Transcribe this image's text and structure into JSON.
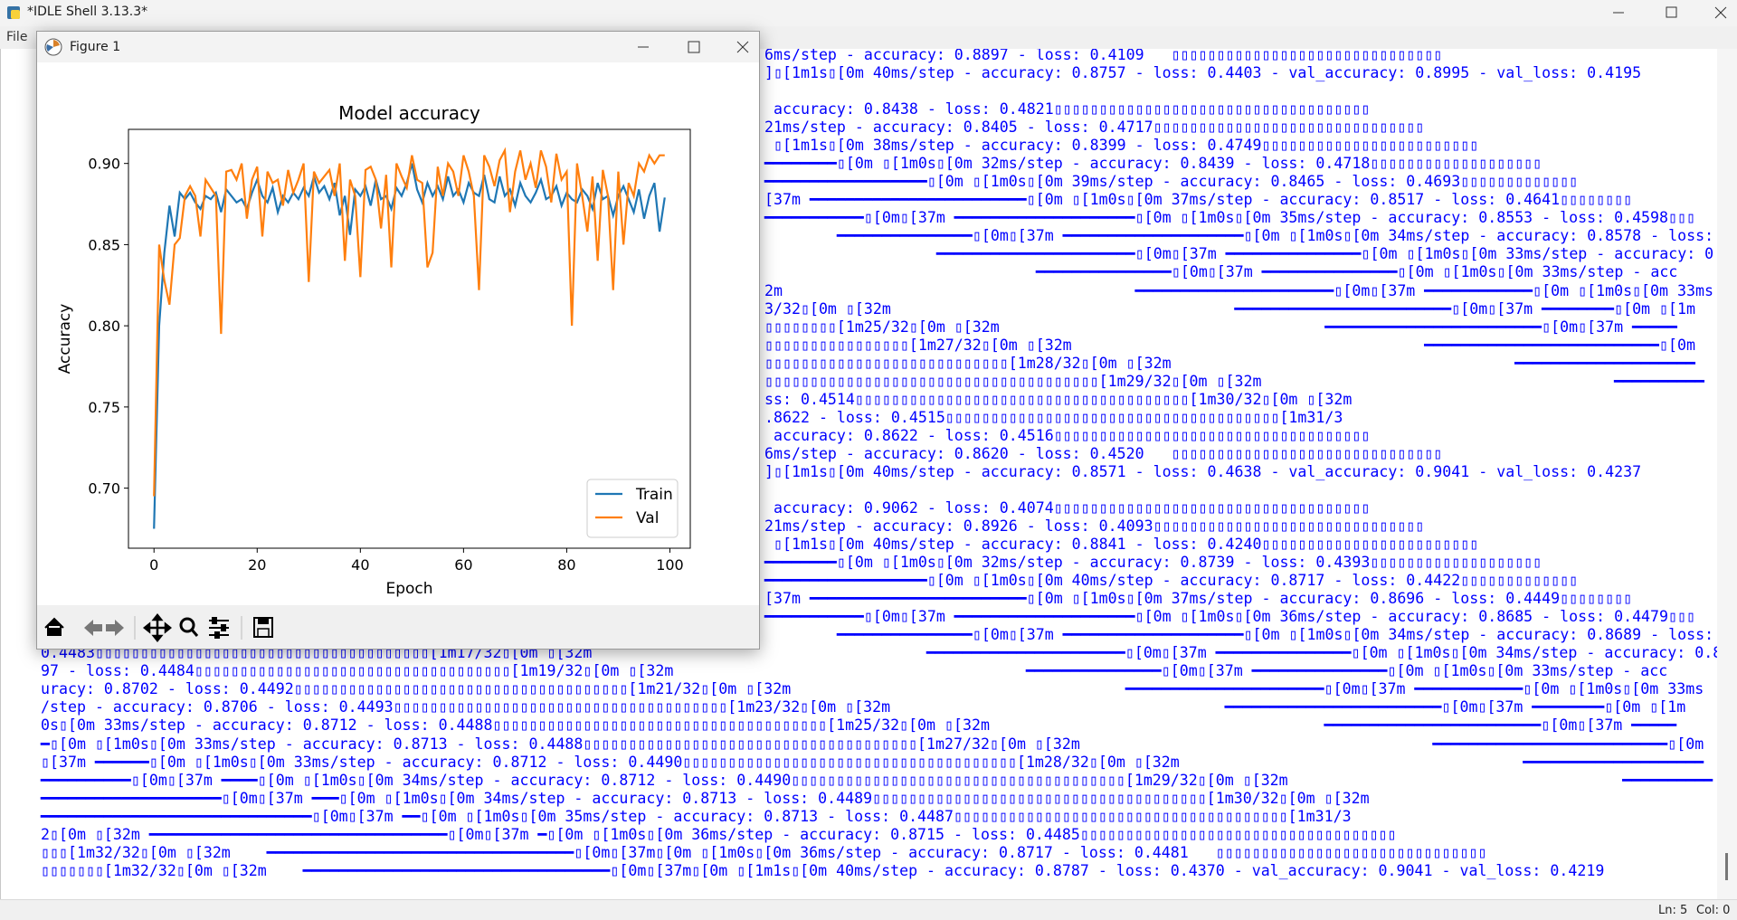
{
  "window": {
    "title": "*IDLE Shell 3.13.3*",
    "menu": [
      "File"
    ]
  },
  "status": {
    "line": "Ln: 5",
    "col": "Col: 0"
  },
  "figure": {
    "title": "Figure 1"
  },
  "shell": {
    "lines": [
      "6ms/step - accuracy: 0.8897 - loss: 0.4109   ▯▯▯▯▯▯▯▯▯▯▯▯▯▯▯▯▯▯▯▯▯▯▯▯▯▯▯▯▯▯",
      "]▯[1m1s▯[0m 40ms/step - accuracy: 0.8757 - loss: 0.4403 - val_accuracy: 0.8995 - val_loss: 0.4195",
      " accuracy: 0.8438 - loss: 0.4821▯▯▯▯▯▯▯▯▯▯▯▯▯▯▯▯▯▯▯▯▯▯▯▯▯▯▯▯▯▯▯▯▯▯▯",
      "21ms/step - accuracy: 0.8405 - loss: 0.4717▯▯▯▯▯▯▯▯▯▯▯▯▯▯▯▯▯▯▯▯▯▯▯▯▯▯▯▯▯▯",
      " ▯[1m1s▯[0m 38ms/step - accuracy: 0.8399 - loss: 0.4749▯▯▯▯▯▯▯▯▯▯▯▯▯▯▯▯▯▯▯▯▯▯▯▯",
      "━━━━━━━━▯[0m ▯[1m0s▯[0m 32ms/step - accuracy: 0.8439 - loss: 0.4718▯▯▯▯▯▯▯▯▯▯▯▯▯▯▯▯▯▯▯",
      "━━━━━━━━━━━━━━━━━━▯[0m ▯[1m0s▯[0m 39ms/step - accuracy: 0.8465 - loss: 0.4693▯▯▯▯▯▯▯▯▯▯▯▯▯",
      "[37m ━━━━━━━━━━━━━━━━━━━━━━━━▯[0m ▯[1m0s▯[0m 37ms/step - accuracy: 0.8517 - loss: 0.4641▯▯▯▯▯▯▯▯",
      "━━━━━━━━━━━▯[0m▯[37m ━━━━━━━━━━━━━━━━━━━━▯[0m ▯[1m0s▯[0m 35ms/step - accuracy: 0.8553 - loss: 0.4598▯▯▯",
      "━━━━━━━━━━━━━━━▯[0m▯[37m ━━━━━━━━━━━━━━━━━━━━▯[0m ▯[1m0s▯[0m 34ms/step - accuracy: 0.8578 - loss:",
      "━━━━━━━━━━━━━━━━━━━━━━▯[0m▯[37m ━━━━━━━━━━━━━━━▯[0m ▯[1m0s▯[0m 33ms/step - accuracy: 0.85",
      "━━━━━━━━━━━━━━━▯[0m▯[37m ━━━━━━━━━━━━━━━▯[0m ▯[1m0s▯[0m 33ms/step - acc",
      "2m                                       ━━━━━━━━━━━━━━━━━━━━━━▯[0m▯[37m ━━━━━━━━━━━━▯[0m ▯[1m0s▯[0m 33ms",
      "3/32▯[0m ▯[32m                                      ━━━━━━━━━━━━━━━━━━━━━━━━▯[0m▯[37m ━━━━━━━━▯[0m ▯[1m",
      "▯▯▯▯▯▯▯▯[1m25/32▯[0m ▯[32m                                    ━━━━━━━━━━━━━━━━━━━━━━━━▯[0m▯[37m ━━━━━",
      "▯▯▯▯▯▯▯▯▯▯▯▯▯▯▯▯[1m27/32▯[0m ▯[32m                                       ━━━━━━━━━━━━━━━━━━━━━━━━━━▯[0m",
      "▯▯▯▯▯▯▯▯▯▯▯▯▯▯▯▯▯▯▯▯▯▯▯▯▯▯▯[1m28/32▯[0m ▯[32m                                      ━━━━━━━━━━━━━━━━━━━━",
      "▯▯▯▯▯▯▯▯▯▯▯▯▯▯▯▯▯▯▯▯▯▯▯▯▯▯▯▯▯▯▯▯▯▯▯▯▯[1m29/32▯[0m ▯[32m                                       ━━━━━━━━━━",
      "ss: 0.4514▯▯▯▯▯▯▯▯▯▯▯▯▯▯▯▯▯▯▯▯▯▯▯▯▯▯▯▯▯▯▯▯▯▯▯▯▯[1m30/32▯[0m ▯[32m",
      ".8622 - loss: 0.4515▯▯▯▯▯▯▯▯▯▯▯▯▯▯▯▯▯▯▯▯▯▯▯▯▯▯▯▯▯▯▯▯▯▯▯▯▯[1m31/3",
      " accuracy: 0.8622 - loss: 0.4516▯▯▯▯▯▯▯▯▯▯▯▯▯▯▯▯▯▯▯▯▯▯▯▯▯▯▯▯▯▯▯▯▯▯▯",
      "6ms/step - accuracy: 0.8620 - loss: 0.4520   ▯▯▯▯▯▯▯▯▯▯▯▯▯▯▯▯▯▯▯▯▯▯▯▯▯▯▯▯▯▯",
      "]▯[1m1s▯[0m 40ms/step - accuracy: 0.8571 - loss: 0.4638 - val_accuracy: 0.9041 - val_loss: 0.4237",
      " accuracy: 0.9062 - loss: 0.4074▯▯▯▯▯▯▯▯▯▯▯▯▯▯▯▯▯▯▯▯▯▯▯▯▯▯▯▯▯▯▯▯▯▯▯",
      "21ms/step - accuracy: 0.8926 - loss: 0.4093▯▯▯▯▯▯▯▯▯▯▯▯▯▯▯▯▯▯▯▯▯▯▯▯▯▯▯▯▯▯",
      " ▯[1m1s▯[0m 40ms/step - accuracy: 0.8841 - loss: 0.4240▯▯▯▯▯▯▯▯▯▯▯▯▯▯▯▯▯▯▯▯▯▯▯▯",
      "━━━━━━━━▯[0m ▯[1m0s▯[0m 32ms/step - accuracy: 0.8739 - loss: 0.4393▯▯▯▯▯▯▯▯▯▯▯▯▯▯▯▯▯▯▯",
      "━━━━━━━━━━━━━━━━━━▯[0m ▯[1m0s▯[0m 40ms/step - accuracy: 0.8717 - loss: 0.4422▯▯▯▯▯▯▯▯▯▯▯▯▯",
      "[37m ━━━━━━━━━━━━━━━━━━━━━━━━▯[0m ▯[1m0s▯[0m 37ms/step - accuracy: 0.8696 - loss: 0.4449▯▯▯▯▯▯▯▯",
      "━━━━━━━━━━━▯[0m▯[37m ━━━━━━━━━━━━━━━━━━━━▯[0m ▯[1m0s▯[0m 36ms/step - accuracy: 0.8685 - loss: 0.4479▯▯▯",
      "━━━━━━━━━━━━━━━▯[0m▯[37m ━━━━━━━━━━━━━━━━━━━━▯[0m ▯[1m0s▯[0m 34ms/step - accuracy: 0.8689 - loss:",
      "0.4483▯▯▯▯▯▯▯▯▯▯▯▯▯▯▯▯▯▯▯▯▯▯▯▯▯▯▯▯▯▯▯▯▯▯▯▯▯[1m17/32▯[0m ▯[32m                                     ━━━━━━━━━━━━━━━━━━━━━━▯[0m▯[37m ━━━━━━━━━━━━━━━▯[0m ▯[1m0s▯[0m 34ms/step - accuracy: 0.86",
      "97 - loss: 0.4484▯▯▯▯▯▯▯▯▯▯▯▯▯▯▯▯▯▯▯▯▯▯▯▯▯▯▯▯▯▯▯▯▯▯▯[1m19/32▯[0m ▯[32m                                       ━━━━━━━━━━━━━━━▯[0m▯[37m ━━━━━━━━━━━━━━━▯[0m ▯[1m0s▯[0m 33ms/step - acc",
      "uracy: 0.8702 - loss: 0.4492▯▯▯▯▯▯▯▯▯▯▯▯▯▯▯▯▯▯▯▯▯▯▯▯▯▯▯▯▯▯▯▯▯▯▯▯▯[1m21/32▯[0m ▯[32m                                     ━━━━━━━━━━━━━━━━━━━━━━▯[0m▯[37m ━━━━━━━━━━━━▯[0m ▯[1m0s▯[0m 33ms",
      "/step - accuracy: 0.8706 - loss: 0.4493▯▯▯▯▯▯▯▯▯▯▯▯▯▯▯▯▯▯▯▯▯▯▯▯▯▯▯▯▯▯▯▯▯▯▯▯▯[1m23/32▯[0m ▯[32m                                     ━━━━━━━━━━━━━━━━━━━━━━━━▯[0m▯[37m ━━━━━━━━▯[0m ▯[1m",
      "0s▯[0m 33ms/step - accuracy: 0.8712 - loss: 0.4488▯▯▯▯▯▯▯▯▯▯▯▯▯▯▯▯▯▯▯▯▯▯▯▯▯▯▯▯▯▯▯▯▯▯▯▯▯[1m25/32▯[0m ▯[32m                                     ━━━━━━━━━━━━━━━━━━━━━━━━▯[0m▯[37m ━━━━━",
      "━▯[0m ▯[1m0s▯[0m 33ms/step - accuracy: 0.8713 - loss: 0.4488▯▯▯▯▯▯▯▯▯▯▯▯▯▯▯▯▯▯▯▯▯▯▯▯▯▯▯▯▯▯▯▯▯▯▯▯▯[1m27/32▯[0m ▯[32m                                       ━━━━━━━━━━━━━━━━━━━━━━━━━━▯[0m",
      "▯[37m ━━━━━━▯[0m ▯[1m0s▯[0m 33ms/step - accuracy: 0.8712 - loss: 0.4490▯▯▯▯▯▯▯▯▯▯▯▯▯▯▯▯▯▯▯▯▯▯▯▯▯▯▯▯▯▯▯▯▯▯▯▯▯[1m28/32▯[0m ▯[32m                                      ━━━━━━━━━━━━━━━━━━━━",
      "━━━━━━━━━━▯[0m▯[37m ━━━━▯[0m ▯[1m0s▯[0m 34ms/step - accuracy: 0.8712 - loss: 0.4490▯▯▯▯▯▯▯▯▯▯▯▯▯▯▯▯▯▯▯▯▯▯▯▯▯▯▯▯▯▯▯▯▯▯▯▯▯[1m29/32▯[0m ▯[32m                                     ━━━━━━━━━━",
      "━━━━━━━━━━━━━━━━━━━━▯[0m▯[37m ━━━▯[0m ▯[1m0s▯[0m 34ms/step - accuracy: 0.8713 - loss: 0.4489▯▯▯▯▯▯▯▯▯▯▯▯▯▯▯▯▯▯▯▯▯▯▯▯▯▯▯▯▯▯▯▯▯▯▯▯▯[1m30/32▯[0m ▯[32m",
      "━━━━━━━━━━━━━━━━━━━━━━━━━━━━━━▯[0m▯[37m ━━▯[0m ▯[1m0s▯[0m 35ms/step - accuracy: 0.8713 - loss: 0.4487▯▯▯▯▯▯▯▯▯▯▯▯▯▯▯▯▯▯▯▯▯▯▯▯▯▯▯▯▯▯▯▯▯▯▯▯▯[1m31/3",
      "2▯[0m ▯[32m ━━━━━━━━━━━━━━━━━━━━━━━━━━━━━━━━━▯[0m▯[37m ━▯[0m ▯[1m0s▯[0m 36ms/step - accuracy: 0.8715 - loss: 0.4485▯▯▯▯▯▯▯▯▯▯▯▯▯▯▯▯▯▯▯▯▯▯▯▯▯▯▯▯▯▯▯▯▯▯▯",
      "▯▯▯[1m32/32▯[0m ▯[32m    ━━━━━━━━━━━━━━━━━━━━━━━━━━━━━━━━━━▯[0m▯[37m▯[0m ▯[1m0s▯[0m 36ms/step - accuracy: 0.8717 - loss: 0.4481   ▯▯▯▯▯▯▯▯▯▯▯▯▯▯▯▯▯▯▯▯▯▯▯▯▯▯▯▯▯▯",
      "▯▯▯▯▯▯▯[1m32/32▯[0m ▯[32m    ━━━━━━━━━━━━━━━━━━━━━━━━━━━━━━━━━━▯[0m▯[37m▯[0m ▯[1m1s▯[0m 40ms/step - accuracy: 0.8787 - loss: 0.4370 - val_accuracy: 0.9041 - val_loss: 0.4219"
    ]
  },
  "chart_data": {
    "type": "line",
    "title": "Model accuracy",
    "x_label": "Epoch",
    "y_label": "Accuracy",
    "x": [
      0,
      1,
      2,
      3,
      4,
      5,
      6,
      7,
      8,
      9,
      10,
      11,
      12,
      13,
      14,
      15,
      16,
      17,
      18,
      19,
      20,
      21,
      22,
      23,
      24,
      25,
      26,
      27,
      28,
      29,
      30,
      31,
      32,
      33,
      34,
      35,
      36,
      37,
      38,
      39,
      40,
      41,
      42,
      43,
      44,
      45,
      46,
      47,
      48,
      49,
      50,
      51,
      52,
      53,
      54,
      55,
      56,
      57,
      58,
      59,
      60,
      61,
      62,
      63,
      64,
      65,
      66,
      67,
      68,
      69,
      70,
      71,
      72,
      73,
      74,
      75,
      76,
      77,
      78,
      79,
      80,
      81,
      82,
      83,
      84,
      85,
      86,
      87,
      88,
      89,
      90,
      91,
      92,
      93,
      94,
      95,
      96,
      97,
      98,
      99
    ],
    "series": [
      {
        "name": "Train",
        "color": "#1f77b4",
        "values": [
          0.675,
          0.8,
          0.845,
          0.874,
          0.855,
          0.882,
          0.878,
          0.882,
          0.876,
          0.872,
          0.88,
          0.878,
          0.882,
          0.87,
          0.884,
          0.88,
          0.876,
          0.878,
          0.872,
          0.882,
          0.89,
          0.88,
          0.876,
          0.885,
          0.87,
          0.88,
          0.876,
          0.882,
          0.878,
          0.885,
          0.88,
          0.892,
          0.882,
          0.886,
          0.878,
          0.888,
          0.868,
          0.88,
          0.856,
          0.884,
          0.88,
          0.886,
          0.874,
          0.89,
          0.878,
          0.88,
          0.872,
          0.885,
          0.88,
          0.888,
          0.9,
          0.884,
          0.876,
          0.888,
          0.88,
          0.886,
          0.878,
          0.892,
          0.88,
          0.884,
          0.876,
          0.888,
          0.882,
          0.88,
          0.893,
          0.878,
          0.876,
          0.892,
          0.88,
          0.884,
          0.874,
          0.888,
          0.88,
          0.876,
          0.882,
          0.89,
          0.878,
          0.88,
          0.886,
          0.874,
          0.882,
          0.878,
          0.876,
          0.884,
          0.88,
          0.872,
          0.888,
          0.878,
          0.88,
          0.868,
          0.88,
          0.886,
          0.878,
          0.87,
          0.884,
          0.866,
          0.88,
          0.888,
          0.858,
          0.879
        ]
      },
      {
        "name": "Val",
        "color": "#ff7f0e",
        "values": [
          0.695,
          0.85,
          0.828,
          0.813,
          0.85,
          0.854,
          0.88,
          0.886,
          0.88,
          0.855,
          0.89,
          0.885,
          0.88,
          0.795,
          0.895,
          0.896,
          0.89,
          0.9,
          0.866,
          0.89,
          0.898,
          0.855,
          0.895,
          0.888,
          0.89,
          0.874,
          0.896,
          0.882,
          0.89,
          0.9,
          0.827,
          0.895,
          0.888,
          0.892,
          0.896,
          0.88,
          0.9,
          0.84,
          0.89,
          0.88,
          0.83,
          0.896,
          0.898,
          0.89,
          0.86,
          0.893,
          0.836,
          0.9,
          0.892,
          0.885,
          0.905,
          0.89,
          0.888,
          0.836,
          0.845,
          0.898,
          0.88,
          0.9,
          0.895,
          0.88,
          0.905,
          0.895,
          0.88,
          0.822,
          0.905,
          0.898,
          0.886,
          0.902,
          0.908,
          0.87,
          0.895,
          0.908,
          0.89,
          0.9,
          0.885,
          0.908,
          0.898,
          0.876,
          0.906,
          0.89,
          0.895,
          0.8,
          0.9,
          0.88,
          0.858,
          0.892,
          0.84,
          0.896,
          0.88,
          0.822,
          0.895,
          0.85,
          0.888,
          0.88,
          0.9,
          0.895,
          0.905,
          0.9,
          0.905,
          0.905
        ]
      }
    ],
    "xlim": [
      -4.95,
      103.95
    ],
    "ylim": [
      0.663,
      0.921
    ],
    "xticks": [
      0,
      20,
      40,
      60,
      80,
      100
    ],
    "yticks": [
      {
        "value": 0.7,
        "label": "0.70"
      },
      0.75,
      {
        "value": 0.8,
        "label": "0.80"
      },
      0.85,
      {
        "value": 0.9,
        "label": "0.90"
      }
    ],
    "legend": "lower right",
    "grid": false
  }
}
